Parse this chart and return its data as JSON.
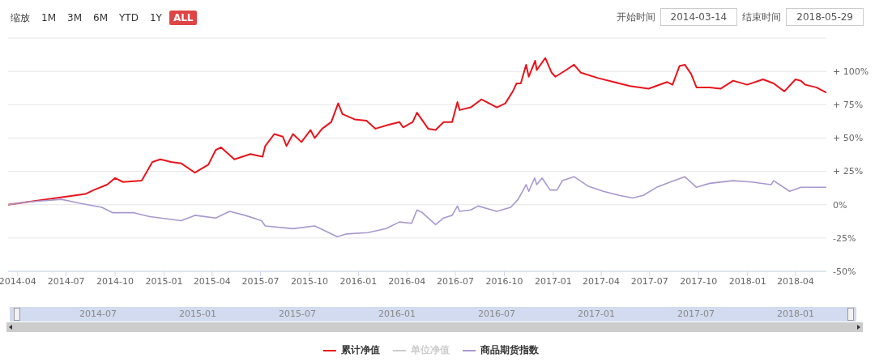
{
  "chart_data": {
    "type": "line",
    "xlim": [
      "2014-03-14",
      "2018-05-29"
    ],
    "xticks": [
      "2014-04",
      "2014-07",
      "2014-10",
      "2015-01",
      "2015-04",
      "2015-07",
      "2015-10",
      "2016-01",
      "2016-04",
      "2016-07",
      "2016-10",
      "2017-01",
      "2017-04",
      "2017-07",
      "2017-10",
      "2018-01",
      "2018-04"
    ],
    "ylim": [
      -50,
      125
    ],
    "yticks": [
      {
        "value": -50,
        "label": "-50%"
      },
      {
        "value": -25,
        "label": "-25%"
      },
      {
        "value": 0,
        "label": "0%"
      },
      {
        "value": 25,
        "label": "+ 25%"
      },
      {
        "value": 50,
        "label": "+ 50%"
      },
      {
        "value": 75,
        "label": "+ 75%"
      },
      {
        "value": 100,
        "label": "+ 100%"
      },
      {
        "value": 125,
        "label": null
      }
    ],
    "grid": "y",
    "legend": "bottom",
    "marker": "none",
    "line_style": "solid",
    "series": [
      {
        "name": "累计净值",
        "color": "#e8141b",
        "x": [
          "2014-03-14",
          "2014-08-06",
          "2014-08-22",
          "2014-09-16",
          "2014-10-01",
          "2014-10-16",
          "2014-11-20",
          "2014-12-10",
          "2014-12-25",
          "2015-01-14",
          "2015-02-02",
          "2015-02-28",
          "2015-03-25",
          "2015-04-08",
          "2015-04-18",
          "2015-05-13",
          "2015-06-12",
          "2015-07-05",
          "2015-07-10",
          "2015-07-27",
          "2015-08-12",
          "2015-08-19",
          "2015-08-31",
          "2015-09-16",
          "2015-10-03",
          "2015-10-11",
          "2015-10-25",
          "2015-11-11",
          "2015-11-24",
          "2015-12-02",
          "2015-12-25",
          "2016-01-16",
          "2016-02-02",
          "2016-02-27",
          "2016-03-18",
          "2016-03-25",
          "2016-04-12",
          "2016-04-20",
          "2016-05-11",
          "2016-05-25",
          "2016-06-09",
          "2016-06-25",
          "2016-07-05",
          "2016-07-09",
          "2016-07-30",
          "2016-08-19",
          "2016-09-17",
          "2016-10-03",
          "2016-10-17",
          "2016-10-24",
          "2016-11-01",
          "2016-11-11",
          "2016-11-16",
          "2016-11-28",
          "2016-12-01",
          "2016-12-17",
          "2016-12-29",
          "2017-01-05",
          "2017-01-25",
          "2017-02-09",
          "2017-02-22",
          "2017-03-26",
          "2017-05-05",
          "2017-05-25",
          "2017-06-29",
          "2017-08-03",
          "2017-08-13",
          "2017-08-26",
          "2017-09-05",
          "2017-09-17",
          "2017-09-27",
          "2017-10-22",
          "2017-11-11",
          "2017-12-05",
          "2017-12-31",
          "2018-01-30",
          "2018-02-19",
          "2018-03-11",
          "2018-04-01",
          "2018-04-11",
          "2018-04-19",
          "2018-05-10",
          "2018-05-29"
        ],
        "values": [
          0,
          8,
          11,
          15,
          20,
          17,
          18,
          32,
          34,
          32,
          31,
          24,
          30,
          41,
          43,
          34,
          38,
          36,
          44,
          53,
          51,
          44,
          53,
          47,
          56,
          50,
          57,
          62,
          76,
          68,
          64,
          63,
          57,
          60,
          62,
          58,
          62,
          69,
          57,
          56,
          62,
          62,
          77,
          71,
          73,
          79,
          73,
          76,
          85,
          91,
          91,
          105,
          96,
          108,
          101,
          110,
          99,
          96,
          101,
          105,
          99,
          95,
          91,
          89,
          87,
          92,
          90,
          104,
          105,
          98,
          88,
          88,
          87,
          93,
          90,
          94,
          91,
          85,
          94,
          93,
          90,
          88,
          84
        ]
      },
      {
        "name": "单位净值",
        "color": "#cccccc"
      },
      {
        "name": "商品期货指数",
        "color": "#a898d0",
        "x": [
          "2014-03-14",
          "2014-04-18",
          "2014-06-22",
          "2014-07-27",
          "2014-09-06",
          "2014-09-26",
          "2014-11-04",
          "2014-12-05",
          "2015-02-02",
          "2015-02-28",
          "2015-04-08",
          "2015-05-04",
          "2015-06-02",
          "2015-07-03",
          "2015-07-10",
          "2015-08-31",
          "2015-10-11",
          "2015-11-22",
          "2015-12-09",
          "2016-01-19",
          "2016-02-22",
          "2016-03-18",
          "2016-04-10",
          "2016-04-20",
          "2016-04-30",
          "2016-05-25",
          "2016-06-09",
          "2016-06-25",
          "2016-07-05",
          "2016-07-09",
          "2016-07-30",
          "2016-08-13",
          "2016-09-17",
          "2016-10-13",
          "2016-10-27",
          "2016-11-11",
          "2016-11-16",
          "2016-11-27",
          "2016-12-01",
          "2016-12-11",
          "2016-12-26",
          "2017-01-08",
          "2017-01-18",
          "2017-02-09",
          "2017-03-07",
          "2017-04-05",
          "2017-05-05",
          "2017-05-30",
          "2017-06-19",
          "2017-07-14",
          "2017-08-09",
          "2017-09-05",
          "2017-09-27",
          "2017-10-22",
          "2017-12-04",
          "2018-01-09",
          "2018-02-14",
          "2018-02-19",
          "2018-03-21",
          "2018-04-11",
          "2018-05-29"
        ],
        "values": [
          0,
          2,
          4,
          1,
          -2,
          -6,
          -6,
          -9,
          -12,
          -8,
          -10,
          -5,
          -8,
          -12,
          -16,
          -18,
          -16,
          -24,
          -22,
          -21,
          -18,
          -13,
          -14,
          -4,
          -6,
          -15,
          -10,
          -8,
          -1,
          -5,
          -4,
          -1,
          -5,
          -2,
          4,
          15,
          10,
          20,
          15,
          20,
          11,
          11,
          18,
          21,
          14,
          10,
          7,
          5,
          7,
          13,
          17,
          21,
          13,
          16,
          18,
          17,
          15,
          18,
          10,
          13,
          13
        ]
      }
    ],
    "annotations": [
      "缩放",
      "1M",
      "3M",
      "6M",
      "YTD",
      "1Y",
      "ALL",
      "开始时间",
      "2014-03-14",
      "结束时间",
      "2018-05-29",
      "2014-07",
      "2015-01",
      "2015-07",
      "2016-01",
      "2016-07",
      "2017-01",
      "2017-07",
      "2018-01"
    ]
  }
}
